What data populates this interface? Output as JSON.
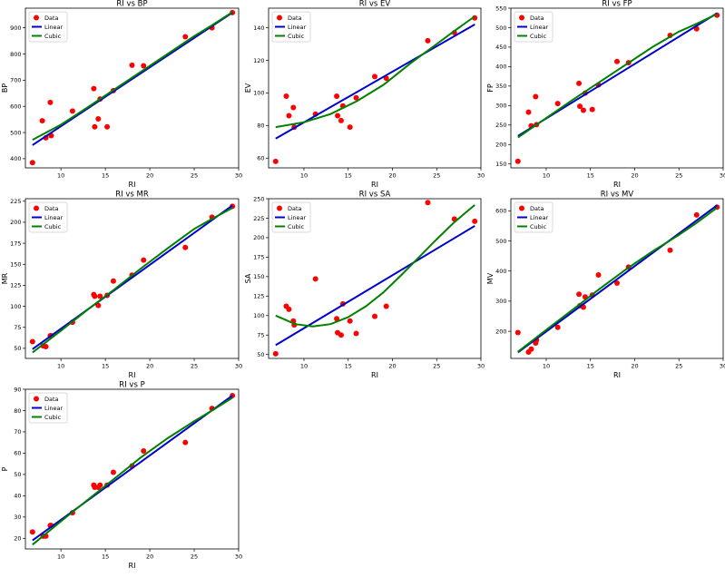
{
  "figure": {
    "background": "#ffffff"
  },
  "legend_labels": {
    "data": "Data",
    "linear": "Linear",
    "cubic": "Cubic"
  },
  "colors": {
    "data": "#ff0000",
    "linear": "#0000cc",
    "cubic": "#008000"
  },
  "chart_data": [
    {
      "type": "scatter",
      "title": "RI vs BP",
      "xlabel": "RI",
      "ylabel": "BP",
      "xlim": [
        6,
        30
      ],
      "ylim": [
        365,
        975
      ],
      "xticks": [
        10,
        15,
        20,
        25,
        30
      ],
      "yticks": [
        400,
        500,
        600,
        700,
        800,
        900
      ],
      "grid": false,
      "legend_position": "upper-left",
      "points": [
        [
          6.8,
          385
        ],
        [
          7.9,
          545
        ],
        [
          8.3,
          480
        ],
        [
          8.8,
          615
        ],
        [
          8.9,
          488
        ],
        [
          11.3,
          582
        ],
        [
          13.7,
          668
        ],
        [
          13.8,
          522
        ],
        [
          14.2,
          552
        ],
        [
          14.4,
          628
        ],
        [
          15.2,
          522
        ],
        [
          15.9,
          660
        ],
        [
          18.0,
          757
        ],
        [
          19.3,
          755
        ],
        [
          24.0,
          866
        ],
        [
          27.0,
          900
        ],
        [
          29.3,
          958
        ]
      ],
      "linear": [
        [
          6.8,
          452
        ],
        [
          29.3,
          958
        ]
      ],
      "cubic": [
        [
          6.8,
          472
        ],
        [
          10,
          530
        ],
        [
          13,
          596
        ],
        [
          16,
          664
        ],
        [
          19,
          732
        ],
        [
          22,
          800
        ],
        [
          25,
          868
        ],
        [
          27,
          910
        ],
        [
          29.3,
          960
        ]
      ]
    },
    {
      "type": "scatter",
      "title": "RI vs EV",
      "xlabel": "RI",
      "ylabel": "EV",
      "xlim": [
        6,
        30
      ],
      "ylim": [
        54,
        152
      ],
      "xticks": [
        10,
        15,
        20,
        25,
        30
      ],
      "yticks": [
        60,
        80,
        100,
        120,
        140
      ],
      "grid": false,
      "legend_position": "upper-left",
      "points": [
        [
          6.8,
          58
        ],
        [
          8.0,
          98
        ],
        [
          8.3,
          86
        ],
        [
          8.8,
          91
        ],
        [
          8.9,
          79
        ],
        [
          11.3,
          87
        ],
        [
          13.7,
          98
        ],
        [
          13.8,
          86
        ],
        [
          14.2,
          83
        ],
        [
          14.4,
          92
        ],
        [
          15.2,
          79
        ],
        [
          15.9,
          97
        ],
        [
          18.0,
          110
        ],
        [
          19.3,
          109
        ],
        [
          24.0,
          132
        ],
        [
          27.0,
          137
        ],
        [
          29.3,
          146
        ]
      ],
      "linear": [
        [
          6.8,
          72
        ],
        [
          29.3,
          142
        ]
      ],
      "cubic": [
        [
          6.8,
          79
        ],
        [
          10,
          82
        ],
        [
          13,
          87
        ],
        [
          16,
          95
        ],
        [
          19,
          105
        ],
        [
          22,
          118
        ],
        [
          25,
          130
        ],
        [
          27,
          138
        ],
        [
          29.3,
          147
        ]
      ]
    },
    {
      "type": "scatter",
      "title": "RI vs FP",
      "xlabel": "RI",
      "ylabel": "FP",
      "xlim": [
        6,
        30
      ],
      "ylim": [
        140,
        550
      ],
      "xticks": [
        10,
        15,
        20,
        25,
        30
      ],
      "yticks": [
        150,
        200,
        250,
        300,
        350,
        400,
        450,
        500,
        550
      ],
      "grid": false,
      "legend_position": "upper-left",
      "points": [
        [
          6.8,
          157
        ],
        [
          8.0,
          283
        ],
        [
          8.3,
          248
        ],
        [
          8.8,
          323
        ],
        [
          8.9,
          251
        ],
        [
          11.3,
          305
        ],
        [
          13.7,
          357
        ],
        [
          13.8,
          298
        ],
        [
          14.2,
          288
        ],
        [
          14.4,
          332
        ],
        [
          15.2,
          290
        ],
        [
          15.9,
          353
        ],
        [
          18.0,
          413
        ],
        [
          19.3,
          410
        ],
        [
          24.0,
          480
        ],
        [
          27.0,
          497
        ],
        [
          29.3,
          532
        ]
      ],
      "linear": [
        [
          6.8,
          222
        ],
        [
          29.3,
          537
        ]
      ],
      "cubic": [
        [
          6.8,
          218
        ],
        [
          10,
          268
        ],
        [
          13,
          315
        ],
        [
          16,
          360
        ],
        [
          19,
          405
        ],
        [
          22,
          450
        ],
        [
          25,
          490
        ],
        [
          27,
          510
        ],
        [
          29.3,
          535
        ]
      ]
    },
    {
      "type": "scatter",
      "title": "RI vs MR",
      "xlabel": "RI",
      "ylabel": "MR",
      "xlim": [
        6,
        30
      ],
      "ylim": [
        38,
        228
      ],
      "xticks": [
        10,
        15,
        20,
        25,
        30
      ],
      "yticks": [
        50,
        75,
        100,
        125,
        150,
        175,
        200,
        225
      ],
      "grid": false,
      "legend_position": "upper-left",
      "points": [
        [
          6.8,
          58
        ],
        [
          8.0,
          53
        ],
        [
          8.3,
          52
        ],
        [
          8.8,
          65
        ],
        [
          8.9,
          65
        ],
        [
          11.3,
          81
        ],
        [
          13.7,
          114
        ],
        [
          13.8,
          112
        ],
        [
          14.2,
          101
        ],
        [
          14.4,
          112
        ],
        [
          15.2,
          113
        ],
        [
          15.9,
          130
        ],
        [
          18.0,
          137
        ],
        [
          19.3,
          155
        ],
        [
          24.0,
          170
        ],
        [
          27.0,
          206
        ],
        [
          29.3,
          219
        ]
      ],
      "linear": [
        [
          6.8,
          49
        ],
        [
          29.3,
          220
        ]
      ],
      "cubic": [
        [
          6.8,
          45
        ],
        [
          10,
          71
        ],
        [
          13,
          96
        ],
        [
          16,
          120
        ],
        [
          19,
          145
        ],
        [
          22,
          169
        ],
        [
          25,
          192
        ],
        [
          27,
          204
        ],
        [
          29.3,
          217
        ]
      ]
    },
    {
      "type": "scatter",
      "title": "RI vs SA",
      "xlabel": "RI",
      "ylabel": "SA",
      "xlim": [
        6,
        30
      ],
      "ylim": [
        45,
        250
      ],
      "xticks": [
        10,
        15,
        20,
        25,
        30
      ],
      "yticks": [
        50,
        75,
        100,
        125,
        150,
        175,
        200,
        225,
        250
      ],
      "grid": false,
      "legend_position": "upper-left",
      "points": [
        [
          6.8,
          51
        ],
        [
          8.0,
          112
        ],
        [
          8.3,
          108
        ],
        [
          8.8,
          93
        ],
        [
          8.9,
          88
        ],
        [
          11.3,
          147
        ],
        [
          13.7,
          96
        ],
        [
          13.8,
          78
        ],
        [
          14.2,
          75
        ],
        [
          14.4,
          115
        ],
        [
          15.2,
          93
        ],
        [
          15.9,
          77
        ],
        [
          18.0,
          99
        ],
        [
          19.3,
          112
        ],
        [
          24.0,
          245
        ],
        [
          27.0,
          224
        ],
        [
          29.3,
          221
        ]
      ],
      "linear": [
        [
          6.8,
          62
        ],
        [
          29.3,
          215
        ]
      ],
      "cubic": [
        [
          6.8,
          100
        ],
        [
          9,
          89
        ],
        [
          11,
          86
        ],
        [
          13,
          89
        ],
        [
          15,
          98
        ],
        [
          17,
          112
        ],
        [
          19,
          130
        ],
        [
          21,
          152
        ],
        [
          23,
          175
        ],
        [
          25,
          198
        ],
        [
          27,
          220
        ],
        [
          29.3,
          242
        ]
      ]
    },
    {
      "type": "scatter",
      "title": "RI vs MV",
      "xlabel": "RI",
      "ylabel": "MV",
      "xlim": [
        6,
        30
      ],
      "ylim": [
        110,
        640
      ],
      "xticks": [
        10,
        15,
        20,
        25,
        30
      ],
      "yticks": [
        200,
        300,
        400,
        500,
        600
      ],
      "grid": false,
      "legend_position": "upper-left",
      "points": [
        [
          6.8,
          196
        ],
        [
          8.0,
          131
        ],
        [
          8.3,
          141
        ],
        [
          8.8,
          161
        ],
        [
          8.9,
          171
        ],
        [
          11.3,
          213
        ],
        [
          13.7,
          323
        ],
        [
          13.8,
          285
        ],
        [
          14.2,
          280
        ],
        [
          14.4,
          314
        ],
        [
          15.2,
          320
        ],
        [
          15.9,
          387
        ],
        [
          18.0,
          360
        ],
        [
          19.3,
          413
        ],
        [
          24.0,
          469
        ],
        [
          27.0,
          586
        ],
        [
          29.3,
          612
        ]
      ],
      "linear": [
        [
          6.8,
          130
        ],
        [
          29.3,
          618
        ]
      ],
      "cubic": [
        [
          6.8,
          132
        ],
        [
          10,
          205
        ],
        [
          13,
          272
        ],
        [
          16,
          340
        ],
        [
          19,
          405
        ],
        [
          22,
          465
        ],
        [
          25,
          520
        ],
        [
          27,
          560
        ],
        [
          29.3,
          610
        ]
      ]
    },
    {
      "type": "scatter",
      "title": "RI vs P",
      "xlabel": "RI",
      "ylabel": "P",
      "xlim": [
        6,
        30
      ],
      "ylim": [
        15,
        90
      ],
      "xticks": [
        10,
        15,
        20,
        25,
        30
      ],
      "yticks": [
        20,
        30,
        40,
        50,
        60,
        70,
        80,
        90
      ],
      "grid": false,
      "legend_position": "upper-left",
      "points": [
        [
          6.8,
          23
        ],
        [
          8.0,
          21
        ],
        [
          8.3,
          21
        ],
        [
          8.8,
          26
        ],
        [
          8.9,
          26
        ],
        [
          11.3,
          32
        ],
        [
          13.7,
          45
        ],
        [
          13.8,
          44
        ],
        [
          14.2,
          44
        ],
        [
          14.4,
          45
        ],
        [
          15.2,
          45
        ],
        [
          15.9,
          51
        ],
        [
          18.0,
          54
        ],
        [
          19.3,
          61
        ],
        [
          24.0,
          65
        ],
        [
          27.0,
          81
        ],
        [
          29.3,
          87
        ]
      ],
      "linear": [
        [
          6.8,
          19
        ],
        [
          29.3,
          87
        ]
      ],
      "cubic": [
        [
          6.8,
          17
        ],
        [
          10,
          28
        ],
        [
          13,
          38
        ],
        [
          16,
          48
        ],
        [
          19,
          58
        ],
        [
          22,
          67
        ],
        [
          25,
          75
        ],
        [
          27,
          80
        ],
        [
          29.3,
          86
        ]
      ]
    }
  ]
}
